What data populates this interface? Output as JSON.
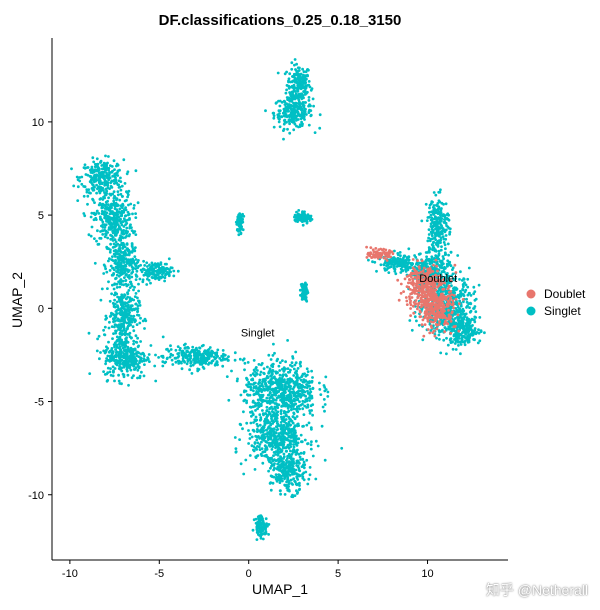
{
  "chart_data": {
    "type": "scatter",
    "title": "DF.classifications_0.25_0.18_3150",
    "xlabel": "UMAP_1",
    "ylabel": "UMAP_2",
    "xlim": [
      -11,
      14.5
    ],
    "ylim": [
      -13.5,
      14.5
    ],
    "x_ticks": [
      -10,
      -5,
      0,
      5,
      10
    ],
    "y_ticks": [
      -10,
      -5,
      0,
      5,
      10
    ],
    "x_tick_labels": [
      "-10",
      "-5",
      "0",
      "5",
      "10"
    ],
    "y_tick_labels": [
      "-10",
      "-5",
      "0",
      "5",
      "10"
    ],
    "grid": false,
    "legend_position": "right",
    "series": [
      {
        "name": "Doublet",
        "color": "#E8766D"
      },
      {
        "name": "Singlet",
        "color": "#00BFC4"
      }
    ],
    "annotations": [
      {
        "text": "Doublet",
        "x": 10.6,
        "y": 1.4
      },
      {
        "text": "Singlet",
        "x": 0.5,
        "y": -1.5
      }
    ],
    "clusters": [
      {
        "series": "Singlet",
        "x": 2.8,
        "y": 12.0,
        "sx": 0.55,
        "sy": 0.9
      },
      {
        "series": "Singlet",
        "x": 2.5,
        "y": 10.5,
        "sx": 0.9,
        "sy": 0.7
      },
      {
        "series": "Singlet",
        "x": -8.2,
        "y": 7.0,
        "sx": 1.0,
        "sy": 0.8
      },
      {
        "series": "Singlet",
        "x": -7.6,
        "y": 4.8,
        "sx": 0.9,
        "sy": 1.2
      },
      {
        "series": "Singlet",
        "x": -7.0,
        "y": 2.3,
        "sx": 0.7,
        "sy": 1.2
      },
      {
        "series": "Singlet",
        "x": -7.0,
        "y": -0.4,
        "sx": 0.7,
        "sy": 1.1
      },
      {
        "series": "Singlet",
        "x": -6.9,
        "y": -2.6,
        "sx": 1.0,
        "sy": 1.0
      },
      {
        "series": "Singlet",
        "x": -5.2,
        "y": 2.0,
        "sx": 0.8,
        "sy": 0.4
      },
      {
        "series": "Singlet",
        "x": -3.0,
        "y": -2.6,
        "sx": 1.5,
        "sy": 0.5
      },
      {
        "series": "Singlet",
        "x": 1.8,
        "y": -4.3,
        "sx": 1.7,
        "sy": 1.2
      },
      {
        "series": "Singlet",
        "x": 1.6,
        "y": -6.8,
        "sx": 1.4,
        "sy": 1.3
      },
      {
        "series": "Singlet",
        "x": 2.2,
        "y": -8.8,
        "sx": 0.8,
        "sy": 0.9
      },
      {
        "series": "Singlet",
        "x": 0.7,
        "y": -11.7,
        "sx": 0.3,
        "sy": 0.5
      },
      {
        "series": "Singlet",
        "x": -0.5,
        "y": 4.6,
        "sx": 0.15,
        "sy": 0.4
      },
      {
        "series": "Singlet",
        "x": 3.0,
        "y": 4.9,
        "sx": 0.4,
        "sy": 0.25
      },
      {
        "series": "Singlet",
        "x": 3.1,
        "y": 0.9,
        "sx": 0.15,
        "sy": 0.4
      },
      {
        "series": "Singlet",
        "x": 11.0,
        "y": 0.2,
        "sx": 1.3,
        "sy": 1.3
      },
      {
        "series": "Singlet",
        "x": 10.2,
        "y": 2.0,
        "sx": 1.0,
        "sy": 0.8
      },
      {
        "series": "Singlet",
        "x": 8.3,
        "y": 2.4,
        "sx": 0.9,
        "sy": 0.4
      },
      {
        "series": "Singlet",
        "x": 10.6,
        "y": 4.5,
        "sx": 0.5,
        "sy": 1.2
      },
      {
        "series": "Singlet",
        "x": 12.0,
        "y": -1.2,
        "sx": 0.8,
        "sy": 0.7
      },
      {
        "series": "Doublet",
        "x": 9.8,
        "y": 1.2,
        "sx": 0.9,
        "sy": 1.0
      },
      {
        "series": "Doublet",
        "x": 7.3,
        "y": 2.9,
        "sx": 0.5,
        "sy": 0.2
      },
      {
        "series": "Doublet",
        "x": 10.5,
        "y": 0.0,
        "sx": 0.9,
        "sy": 0.9
      }
    ]
  },
  "watermark": "知乎 @Netherall"
}
